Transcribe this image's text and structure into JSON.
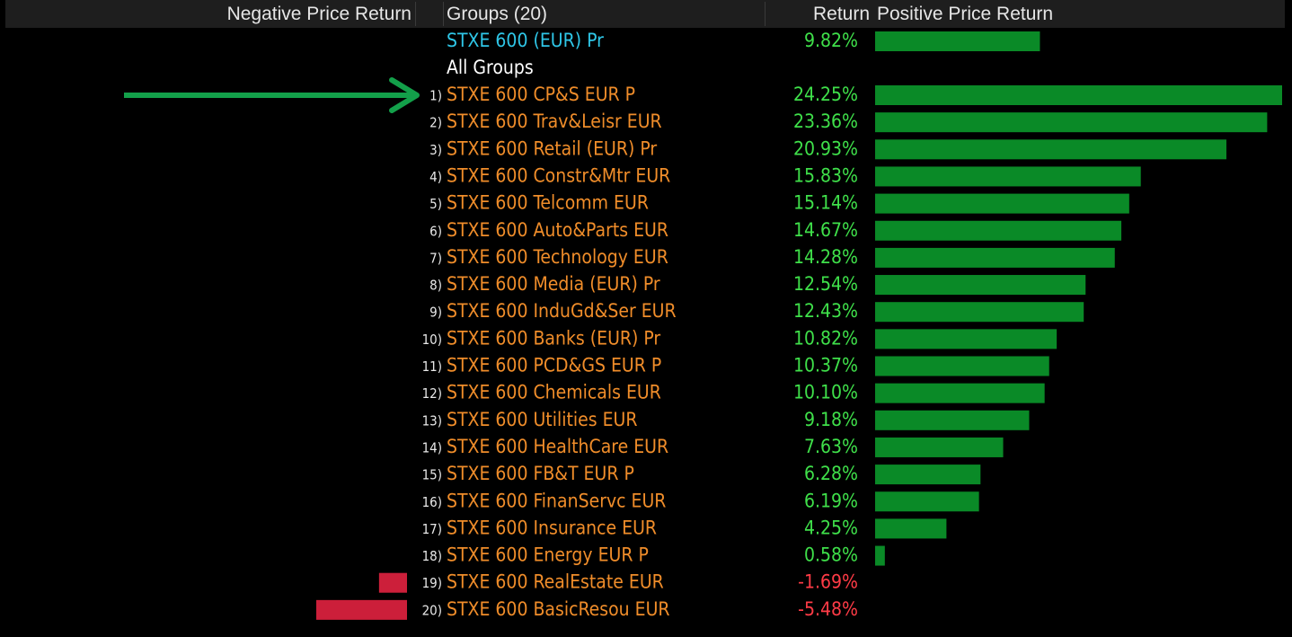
{
  "header": {
    "negative_label": "Negative Price Return",
    "groups_label": "Groups (20)",
    "return_label": "Return",
    "positive_label": "Positive Price Return"
  },
  "colors": {
    "positive_bar": "#0a8a27",
    "negative_bar": "#cc1f3a",
    "positive_text": "#3fe04a",
    "negative_text": "#ff3b46",
    "group_text": "#f08d2a",
    "index_text": "#2fc7e8",
    "all_groups_text": "#ffffff",
    "arrow": "#13a04a"
  },
  "annotation": {
    "arrow_target": "STXE 600 CP&S EUR P"
  },
  "chart_data": {
    "type": "bar",
    "orientation": "horizontal",
    "title": "",
    "xlabel": "Return",
    "ylabel": "Groups (20)",
    "legend": [
      "Negative Price Return",
      "Positive Price Return"
    ],
    "benchmark": {
      "name": "STXE 600 (EUR) Pr",
      "value": 9.82,
      "label": "9.82%"
    },
    "section_label": "All Groups",
    "ranks": [
      "1)",
      "2)",
      "3)",
      "4)",
      "5)",
      "6)",
      "7)",
      "8)",
      "9)",
      "10)",
      "11)",
      "12)",
      "13)",
      "14)",
      "15)",
      "16)",
      "17)",
      "18)",
      "19)",
      "20)"
    ],
    "categories": [
      "STXE 600 CP&S EUR P",
      "STXE 600 Trav&Leisr EUR",
      "STXE 600 Retail (EUR) Pr",
      "STXE 600 Constr&Mtr EUR",
      "STXE 600 Telcomm EUR",
      "STXE 600 Auto&Parts EUR",
      "STXE 600 Technology EUR",
      "STXE 600 Media (EUR) Pr",
      "STXE 600 InduGd&Ser EUR",
      "STXE 600 Banks (EUR) Pr",
      "STXE 600 PCD&GS EUR P",
      "STXE 600 Chemicals EUR",
      "STXE 600 Utilities EUR",
      "STXE 600 HealthCare EUR",
      "STXE 600 FB&T EUR P",
      "STXE 600 FinanServc EUR",
      "STXE 600 Insurance EUR",
      "STXE 600 Energy EUR P",
      "STXE 600 RealEstate EUR",
      "STXE 600 BasicResou EUR"
    ],
    "values": [
      24.25,
      23.36,
      20.93,
      15.83,
      15.14,
      14.67,
      14.28,
      12.54,
      12.43,
      10.82,
      10.37,
      10.1,
      9.18,
      7.63,
      6.28,
      6.19,
      4.25,
      0.58,
      -1.69,
      -5.48
    ],
    "value_labels": [
      "24.25%",
      "23.36%",
      "20.93%",
      "15.83%",
      "15.14%",
      "14.67%",
      "14.28%",
      "12.54%",
      "12.43%",
      "10.82%",
      "10.37%",
      "10.10%",
      "9.18%",
      "7.63%",
      "6.28%",
      "6.19%",
      "4.25%",
      "0.58%",
      "-1.69%",
      "-5.48%"
    ]
  }
}
